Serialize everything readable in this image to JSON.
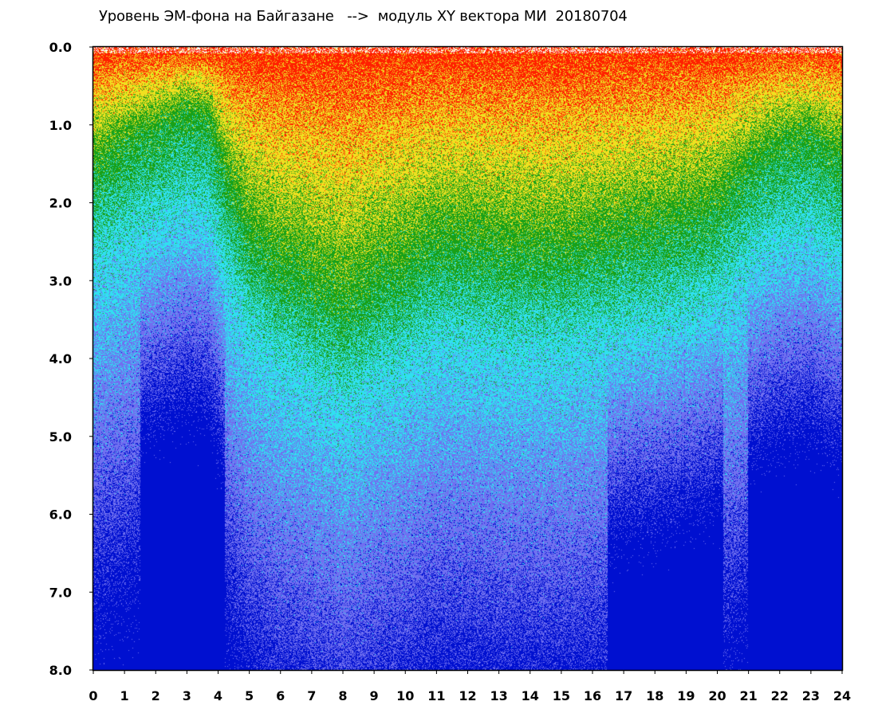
{
  "chart_data": {
    "type": "heatmap",
    "title": "Уровень ЭМ-фона на Байгазане   -->  модуль XY вектора МИ  20180704",
    "xlabel": "",
    "ylabel": "",
    "xlim": [
      0,
      24
    ],
    "ylim": [
      8.0,
      0.0
    ],
    "y_axis_inverted": true,
    "x_ticks": [
      "0",
      "1",
      "2",
      "3",
      "4",
      "5",
      "6",
      "7",
      "8",
      "9",
      "10",
      "11",
      "12",
      "13",
      "14",
      "15",
      "16",
      "17",
      "18",
      "19",
      "20",
      "21",
      "22",
      "23",
      "24"
    ],
    "y_ticks": [
      "0.0",
      "1.0",
      "2.0",
      "3.0",
      "4.0",
      "5.0",
      "6.0",
      "7.0",
      "8.0"
    ],
    "grid": false,
    "color_scale": [
      "#0010d0",
      "#7070f0",
      "#30e0f0",
      "#18a018",
      "#f0e020",
      "#ff2000"
    ],
    "band_profile": {
      "hours": [
        0,
        1,
        2,
        3,
        3.7,
        4.3,
        5,
        6,
        7,
        8,
        9,
        10,
        11,
        12,
        13,
        14,
        15,
        16,
        17,
        18,
        19,
        20,
        21,
        22,
        23,
        24
      ],
      "green_boundary": [
        1.5,
        1.2,
        1.0,
        0.8,
        0.9,
        1.7,
        2.4,
        2.8,
        3.0,
        3.3,
        3.0,
        2.8,
        2.5,
        2.5,
        2.6,
        2.6,
        2.6,
        2.5,
        2.4,
        2.3,
        2.2,
        2.0,
        1.5,
        1.2,
        1.1,
        1.4
      ],
      "low_noise_zones": [
        [
          1.5,
          4.2
        ],
        [
          16.5,
          20.2
        ],
        [
          21.0,
          24.0
        ]
      ]
    }
  }
}
